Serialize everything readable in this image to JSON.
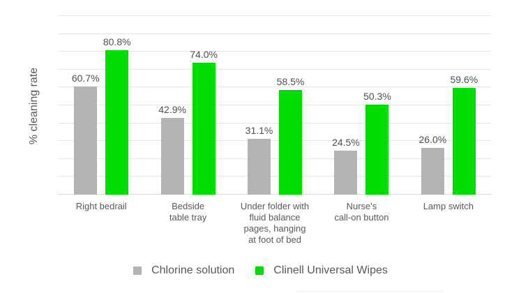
{
  "chart_data": {
    "type": "bar",
    "title": "",
    "xlabel": "",
    "ylabel": "% cleaning rate",
    "ylim": [
      0,
      100
    ],
    "gridline_step": 10,
    "grid": true,
    "legend_position": "bottom",
    "value_label_format": "{value}%",
    "categories": [
      "Right bedrail",
      "Bedside\ntable tray",
      "Under folder with\nfluid balance\npages, hanging\nat foot of bed",
      "Nurse's\ncall-on button",
      "Lamp switch"
    ],
    "series": [
      {
        "name": "Chlorine solution",
        "color": "#b3b3b3",
        "values": [
          60.7,
          42.9,
          31.1,
          24.5,
          26.0
        ]
      },
      {
        "name": "Clinell Universal Wipes",
        "color": "#00dd00",
        "values": [
          80.8,
          74.0,
          58.5,
          50.3,
          59.6
        ]
      }
    ]
  },
  "colors": {
    "background": "#ffffff",
    "gridline": "#e3e3e3",
    "baseline": "#d9d9d9",
    "text": "#58585a",
    "value_text": "#4f4f51"
  }
}
